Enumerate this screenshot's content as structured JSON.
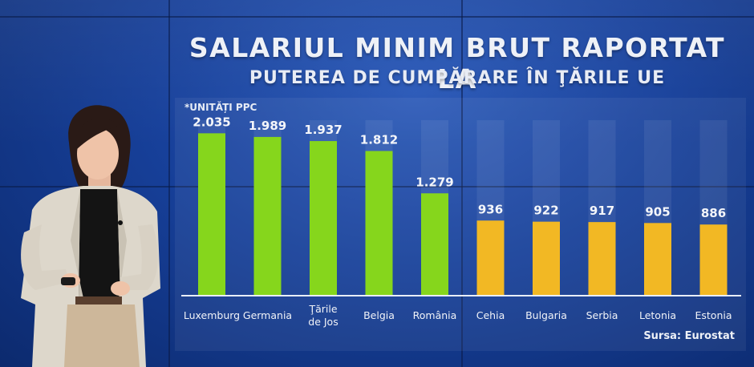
{
  "title": "SALARIUL MINIM BRUT RAPORTAT LA",
  "subtitle": "PUTEREA DE CUMPĂRARE ÎN ŢĂRILE UE",
  "unit": "*UNITĂȚI PPC",
  "source": "Sursa: Eurostat",
  "chart_data": {
    "type": "bar",
    "title": "SALARIUL MINIM BRUT RAPORTAT LA PUTEREA DE CUMPĂRARE ÎN ŢĂRILE UE",
    "ylabel": "*UNITĂȚI PPC",
    "xlabel": "",
    "ylim": [
      0,
      2200
    ],
    "grid": false,
    "categories": [
      "Luxemburg",
      "Germania",
      "Ţările de Jos",
      "Belgia",
      "România",
      "Cehia",
      "Bulgaria",
      "Serbia",
      "Letonia",
      "Estonia"
    ],
    "category_lines": [
      [
        "Luxemburg"
      ],
      [
        "Germania"
      ],
      [
        "Ţările",
        "de Jos"
      ],
      [
        "Belgia"
      ],
      [
        "România"
      ],
      [
        "Cehia"
      ],
      [
        "Bulgaria"
      ],
      [
        "Serbia"
      ],
      [
        "Letonia"
      ],
      [
        "Estonia"
      ]
    ],
    "values": [
      2035,
      1989,
      1937,
      1812,
      1279,
      936,
      922,
      917,
      905,
      886
    ],
    "value_labels": [
      "2.035",
      "1.989",
      "1.937",
      "1.812",
      "1.279",
      "936",
      "922",
      "917",
      "905",
      "886"
    ],
    "colors": [
      "#86d61c",
      "#86d61c",
      "#86d61c",
      "#86d61c",
      "#86d61c",
      "#f2b824",
      "#f2b824",
      "#f2b824",
      "#f2b824",
      "#f2b824"
    ]
  }
}
